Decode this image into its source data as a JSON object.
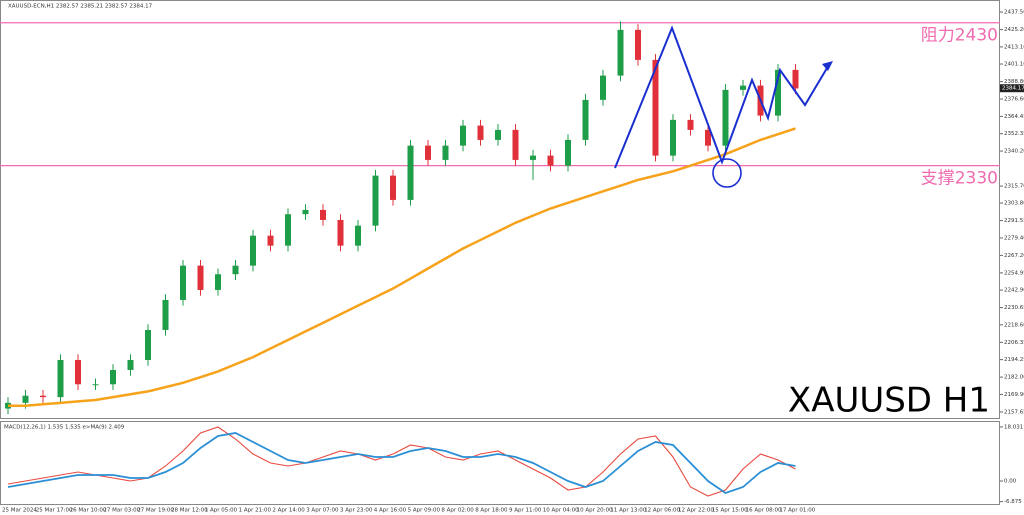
{
  "chart_data": [
    {
      "type": "candlestick",
      "header": "XAUUSD-ECN,H1  2382.57 2385.21 2382.57 2384.17",
      "watermark": "XAUUSD H1",
      "open": [
        2160,
        2164,
        2169,
        2168,
        2194,
        2177,
        2177,
        2187,
        2194,
        2215,
        2236,
        2260,
        2243,
        2254,
        2260,
        2281,
        2274,
        2296,
        2299,
        2292,
        2274,
        2288,
        2323,
        2306,
        2344,
        2334,
        2344,
        2358,
        2348,
        2355,
        2334,
        2337,
        2330,
        2348,
        2376,
        2393,
        2425,
        2404,
        2337,
        2362,
        2355,
        2344,
        2383,
        2386,
        2365,
        2397
      ],
      "high": [
        2168,
        2173,
        2173,
        2198,
        2198,
        2181,
        2191,
        2198,
        2219,
        2240,
        2264,
        2264,
        2258,
        2264,
        2285,
        2285,
        2300,
        2303,
        2303,
        2296,
        2292,
        2327,
        2327,
        2348,
        2348,
        2348,
        2362,
        2362,
        2359,
        2359,
        2341,
        2341,
        2352,
        2380,
        2397,
        2431,
        2429,
        2408,
        2366,
        2366,
        2359,
        2387,
        2390,
        2390,
        2401,
        2401
      ],
      "low": [
        2156,
        2160,
        2164,
        2164,
        2173,
        2173,
        2173,
        2183,
        2190,
        2211,
        2232,
        2239,
        2239,
        2250,
        2256,
        2270,
        2270,
        2292,
        2288,
        2270,
        2270,
        2284,
        2302,
        2302,
        2330,
        2330,
        2340,
        2344,
        2344,
        2330,
        2320,
        2326,
        2326,
        2344,
        2372,
        2389,
        2400,
        2333,
        2333,
        2351,
        2340,
        2340,
        2379,
        2361,
        2361,
        2380
      ],
      "close": [
        2164,
        2169,
        2168,
        2194,
        2177,
        2177,
        2187,
        2194,
        2215,
        2236,
        2260,
        2243,
        2254,
        2260,
        2281,
        2274,
        2296,
        2299,
        2292,
        2274,
        2288,
        2323,
        2306,
        2344,
        2334,
        2344,
        2358,
        2348,
        2355,
        2334,
        2337,
        2330,
        2348,
        2376,
        2393,
        2425,
        2404,
        2337,
        2362,
        2355,
        2344,
        2383,
        2386,
        2365,
        2397,
        2384
      ],
      "up_color": "#1f9e4a",
      "down_color": "#e0303a",
      "ma": {
        "color": "#f7a21b",
        "values": [
          2162,
          2162,
          2163,
          2164,
          2165,
          2166,
          2168,
          2170,
          2172,
          2175,
          2178,
          2182,
          2186,
          2191,
          2196,
          2202,
          2208,
          2214,
          2220,
          2226,
          2232,
          2238,
          2244,
          2251,
          2258,
          2265,
          2272,
          2278,
          2284,
          2290,
          2295,
          2300,
          2304,
          2308,
          2312,
          2316,
          2320,
          2323,
          2326,
          2330,
          2334,
          2338,
          2343,
          2348,
          2352,
          2356
        ]
      },
      "levels": [
        {
          "name": "阻力2430",
          "value": 2430,
          "color": "#f06bb0"
        },
        {
          "name": "支撑2330",
          "value": 2330,
          "color": "#f06bb0"
        }
      ],
      "last_price": 2384.17,
      "ylim": [
        2153.4,
        2444.5
      ],
      "yticks": [
        {
          "value": 2437.5,
          "label": "2437.50"
        },
        {
          "value": 2425.2,
          "label": "2425.20"
        },
        {
          "value": 2413.1,
          "label": "2413.10"
        },
        {
          "value": 2401.1,
          "label": "2401.10"
        },
        {
          "value": 2388.8,
          "label": "2388.80"
        },
        {
          "value": 2376.6,
          "label": "2376.60"
        },
        2364.45,
        2352.35,
        {
          "value": 2340.2,
          "label": "2340.20"
        },
        {
          "value": 2315.7,
          "label": "2315.70"
        },
        {
          "value": 2303.8,
          "label": "2303.80"
        },
        2291.55,
        {
          "value": 2279.4,
          "label": "2279.40"
        },
        {
          "value": 2267.2,
          "label": "2267.20"
        },
        2254.95,
        {
          "value": 2242.9,
          "label": "2242.90"
        },
        2230.65,
        {
          "value": 2218.6,
          "label": "2218.60"
        },
        2206.35,
        2194.25,
        {
          "value": 2182,
          "label": "2182.00"
        },
        {
          "value": 2169.9,
          "label": "2169.90"
        },
        2157.65
      ],
      "x_labels": [
        "25 Mar 2024",
        "25 Mar 17:00",
        "26 Mar 10:00",
        "27 Mar 03:00",
        "27 Mar 19:00",
        "28 Mar 12:00",
        "1 Apr 05:00",
        "1 Apr 21:00",
        "2 Apr 14:00",
        "3 Apr 07:00",
        "3 Apr 23:00",
        "4 Apr 16:00",
        "5 Apr 09:00",
        "8 Apr 02:00",
        "8 Apr 18:00",
        "9 Apr 11:00",
        "10 Apr 04:00",
        "10 Apr 20:00",
        "11 Apr 13:00",
        "12 Apr 06:00",
        "12 Apr 22:00",
        "15 Apr 15:00",
        "16 Apr 08:00",
        "17 Apr 01:00"
      ]
    },
    {
      "type": "line",
      "title": "MACD(12,26,1) 1.535 1.535 e>MA(9) 2.409",
      "series": [
        {
          "name": "MACD",
          "color": "#e8493f",
          "values": [
            -1,
            0,
            1,
            2,
            3,
            2,
            1,
            0,
            1,
            5,
            10,
            16,
            18,
            14,
            9,
            6,
            5,
            6,
            8,
            10,
            9,
            7,
            9,
            12,
            11,
            8,
            7,
            9,
            10,
            7,
            4,
            1,
            -3,
            -2,
            3,
            9,
            14,
            15,
            8,
            -2,
            -5,
            -3,
            4,
            9,
            7,
            4
          ]
        },
        {
          "name": "MA(9)",
          "color": "#2b8fd6",
          "values": [
            -2,
            -1,
            0,
            1,
            2,
            2,
            2,
            1,
            1,
            3,
            6,
            11,
            15,
            16,
            13,
            10,
            7,
            6,
            7,
            8,
            9,
            8,
            8,
            10,
            11,
            10,
            8,
            8,
            9,
            8,
            6,
            3,
            0,
            -2,
            0,
            5,
            10,
            13,
            12,
            6,
            0,
            -4,
            -2,
            3,
            6,
            5
          ]
        }
      ],
      "ylim": [
        -8,
        20
      ],
      "yticks": [
        18.031,
        {
          "value": 0,
          "label": "0.00"
        },
        -6.875
      ]
    }
  ]
}
